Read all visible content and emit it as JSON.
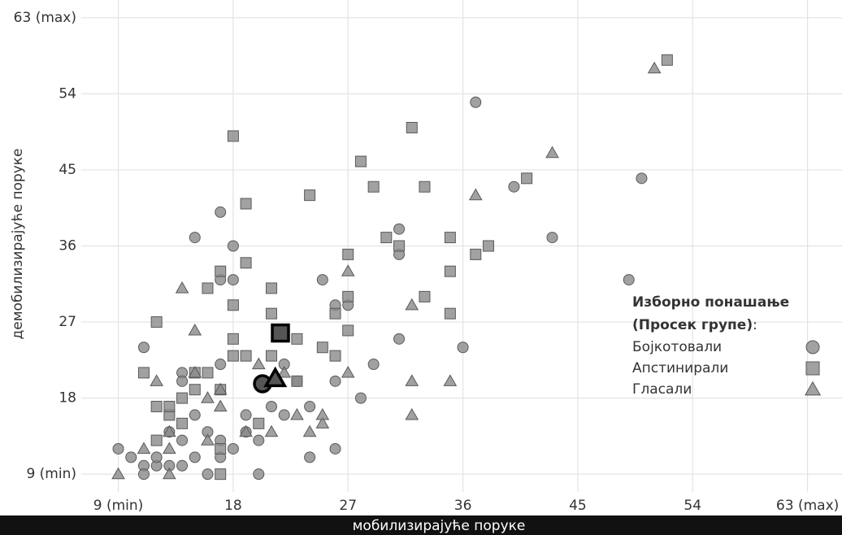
{
  "chart_data": {
    "type": "scatter",
    "x_label": "мобилизирајуће поруке",
    "y_label": "демобилизирајуће поруке",
    "xlim": [
      6.1,
      65.7
    ],
    "ylim": [
      6.9,
      65.1
    ],
    "xticks": [
      {
        "value": 9,
        "label": "9 (min)"
      },
      18,
      27,
      36,
      45,
      54,
      {
        "value": 63,
        "label": "63 (max)"
      }
    ],
    "yticks": [
      {
        "value": 9,
        "label": "9 (min)"
      },
      18,
      27,
      36,
      45,
      54,
      {
        "value": 63,
        "label": "63 (max)"
      }
    ],
    "grid": true,
    "legend_title": [
      "Изборно понашање",
      "(Просек групе)"
    ],
    "legend_title_suffix": ":",
    "series": [
      {
        "name": "Бојкотовали",
        "marker": "circle",
        "color": "#8a8a8a",
        "mean_x": 20.3,
        "mean_y": 19.7,
        "x": [
          9,
          10,
          11,
          11,
          11,
          12,
          12,
          13,
          13,
          14,
          14,
          14,
          14,
          15,
          15,
          15,
          16,
          16,
          17,
          17,
          17,
          17,
          17,
          18,
          18,
          18,
          19,
          19,
          20,
          20,
          21,
          22,
          22,
          23,
          24,
          24,
          25,
          26,
          26,
          26,
          27,
          28,
          29,
          31,
          31,
          31,
          36,
          37,
          40,
          43,
          49,
          50
        ],
        "y": [
          12,
          11,
          24,
          10,
          9,
          10,
          11,
          10,
          14,
          21,
          20,
          13,
          10,
          37,
          11,
          16,
          9,
          14,
          40,
          32,
          22,
          13,
          11,
          36,
          32,
          12,
          16,
          14,
          9,
          13,
          17,
          22,
          16,
          20,
          11,
          17,
          32,
          12,
          20,
          29,
          29,
          18,
          22,
          38,
          35,
          25,
          24,
          53,
          43,
          37,
          32,
          44
        ]
      },
      {
        "name": "Апстинирали",
        "marker": "square",
        "color": "#8a8a8a",
        "mean_x": 21.7,
        "mean_y": 25.7,
        "x": [
          12,
          11,
          12,
          12,
          13,
          13,
          14,
          14,
          15,
          15,
          16,
          16,
          17,
          17,
          17,
          17,
          18,
          18,
          18,
          18,
          19,
          19,
          19,
          20,
          21,
          21,
          21,
          23,
          23,
          24,
          25,
          26,
          26,
          27,
          27,
          27,
          28,
          29,
          30,
          31,
          32,
          33,
          33,
          35,
          35,
          35,
          37,
          38,
          41,
          52
        ],
        "y": [
          27,
          21,
          17,
          13,
          16,
          17,
          18,
          15,
          19,
          21,
          21,
          31,
          33,
          19,
          12,
          9,
          49,
          29,
          25,
          23,
          41,
          34,
          23,
          15,
          31,
          28,
          23,
          25,
          20,
          42,
          24,
          23,
          28,
          35,
          30,
          26,
          46,
          43,
          37,
          36,
          50,
          43,
          30,
          37,
          33,
          28,
          35,
          36,
          44,
          58
        ]
      },
      {
        "name": "Гласали",
        "marker": "triangle",
        "color": "#8a8a8a",
        "mean_x": 21.3,
        "mean_y": 20.3,
        "x": [
          9,
          11,
          12,
          13,
          13,
          13,
          14,
          15,
          15,
          16,
          16,
          17,
          17,
          19,
          20,
          21,
          22,
          23,
          24,
          25,
          25,
          27,
          27,
          32,
          32,
          32,
          35,
          37,
          43,
          51
        ],
        "y": [
          9,
          12,
          20,
          9,
          14,
          12,
          31,
          26,
          21,
          18,
          13,
          17,
          19,
          14,
          22,
          14,
          21,
          16,
          14,
          15,
          16,
          33,
          21,
          29,
          20,
          16,
          20,
          42,
          47,
          57
        ]
      }
    ]
  }
}
